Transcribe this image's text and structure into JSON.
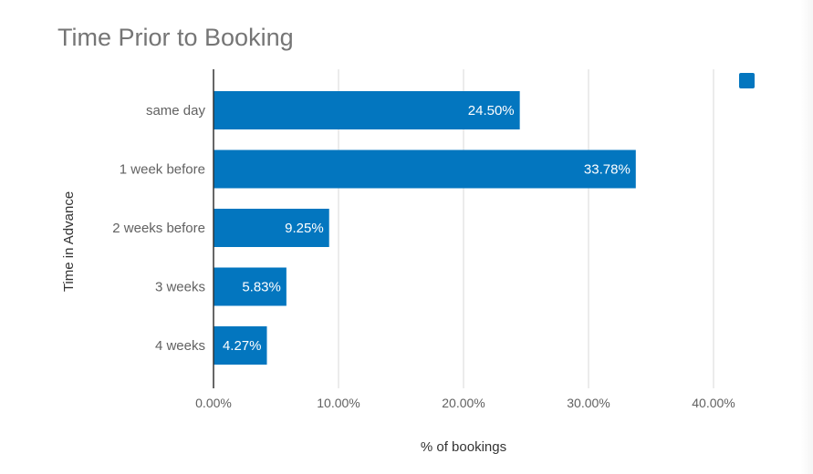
{
  "chart_data": {
    "type": "bar",
    "orientation": "horizontal",
    "title": "Time Prior to Booking",
    "xlabel": "% of bookings",
    "ylabel": "Time in Advance",
    "categories": [
      "same day",
      "1 week before",
      "2 weeks before",
      "3 weeks",
      "4 weeks"
    ],
    "values": [
      24.5,
      33.78,
      9.25,
      5.83,
      4.27
    ],
    "data_labels": [
      "24.50%",
      "33.78%",
      "9.25%",
      "5.83%",
      "4.27%"
    ],
    "xlim": [
      0,
      40
    ],
    "x_ticks": [
      0,
      10,
      20,
      30,
      40
    ],
    "x_tick_labels": [
      "0.00%",
      "10.00%",
      "20.00%",
      "30.00%",
      "40.00%"
    ],
    "grid": true,
    "legend_position": "top-right",
    "legend_entries": [
      ""
    ],
    "colors": {
      "bar": "#0376BF",
      "grid": "#d9d9d9",
      "axis": "#333333"
    }
  }
}
